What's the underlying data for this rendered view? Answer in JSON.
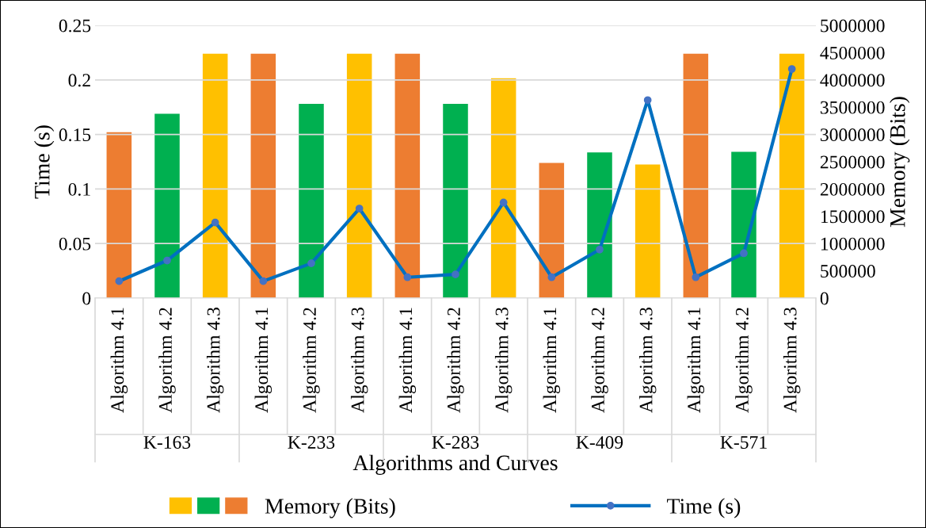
{
  "chart_data": {
    "type": "bar",
    "xlabel": "Algorithms and Curves",
    "ylabel": "Time (s)",
    "y2label": "Memory (Bits)",
    "categories": [
      "Algorithm 4.1",
      "Algorithm 4.2",
      "Algorithm 4.3",
      "Algorithm 4.1",
      "Algorithm 4.2",
      "Algorithm 4.3",
      "Algorithm 4.1",
      "Algorithm 4.2",
      "Algorithm 4.3",
      "Algorithm 4.1",
      "Algorithm 4.2",
      "Algorithm 4.3",
      "Algorithm 4.1",
      "Algorithm 4.2",
      "Algorithm 4.3"
    ],
    "annotations": [
      "K-163",
      "K-233",
      "K-283",
      "K-409",
      "K-571"
    ],
    "series": [
      {
        "name": "Memory (Bits)",
        "axis": "y2",
        "colors": [
          "#ed7d31",
          "#00b050",
          "#ffc000",
          "#ed7d31",
          "#00b050",
          "#ffc000",
          "#ed7d31",
          "#00b050",
          "#ffc000",
          "#ed7d31",
          "#00b050",
          "#ffc000",
          "#ed7d31",
          "#00b050",
          "#ffc000"
        ],
        "values": [
          3040000,
          3380000,
          4480000,
          4480000,
          3560000,
          4480000,
          4480000,
          3560000,
          4030000,
          2480000,
          2670000,
          2450000,
          4480000,
          2680000,
          4480000
        ]
      },
      {
        "name": "Time (s)",
        "type": "line",
        "color": "#0070c0",
        "values": [
          0.0155,
          0.0345,
          0.0693,
          0.0155,
          0.0319,
          0.0821,
          0.0191,
          0.0217,
          0.0876,
          0.0191,
          0.0445,
          0.1815,
          0.0191,
          0.0411,
          0.21
        ]
      }
    ],
    "ylim": [
      0,
      0.25
    ],
    "yticks": [
      0,
      0.05,
      0.1,
      0.15,
      0.2,
      0.25
    ],
    "y2lim": [
      0,
      5000000
    ],
    "y2ticks": [
      0,
      500000,
      1000000,
      1500000,
      2000000,
      2500000,
      3000000,
      3500000,
      4000000,
      4500000,
      5000000
    ],
    "grid": "y",
    "legend": "bottom",
    "marker": "circle",
    "line_style": "solid"
  }
}
